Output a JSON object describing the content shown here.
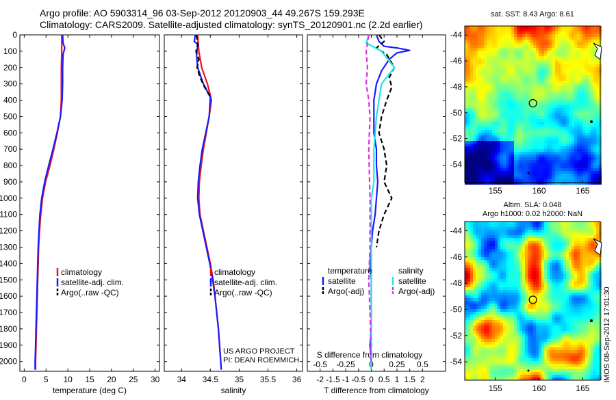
{
  "title": {
    "line1": "Argo profile: AO 5903314_96 03-Sep-2012 20120903_44 49.267S 159.293E",
    "line2": "Climatology: CARS2009. Satellite-adjusted climatology: synTS_20120901.nc (2.2d earlier)"
  },
  "colors": {
    "climatology": "#e8141b",
    "satellite": "#1a1aff",
    "argo": "#000000",
    "salinity_sat": "#1ee6e6",
    "salinity_argo": "#e030e0"
  },
  "depth_axis": {
    "ticks": [
      0,
      100,
      200,
      300,
      400,
      500,
      600,
      700,
      800,
      900,
      1000,
      1100,
      1200,
      1300,
      1400,
      1500,
      1600,
      1700,
      1800,
      1900,
      2000
    ],
    "ylim": [
      0,
      2060
    ]
  },
  "credit": {
    "line1": "US ARGO PROJECT",
    "line2": "PI: DEAN ROEMMICH"
  },
  "timestamp": "IMOS 08-Sep-2012 17:01:30",
  "chart_data": [
    {
      "id": "temperature",
      "type": "line",
      "xlabel": "temperature (deg C)",
      "xlim": [
        -1,
        31
      ],
      "xticks": [
        0,
        5,
        10,
        15,
        20,
        25,
        30
      ],
      "legend": [
        "climatology",
        "satellite-adj. clim.",
        "Argo(..raw -QC)"
      ],
      "series": [
        {
          "name": "climatology",
          "color": "#e8141b",
          "dash": false,
          "points": [
            [
              8.6,
              0
            ],
            [
              8.6,
              100
            ],
            [
              8.5,
              200
            ],
            [
              8.5,
              300
            ],
            [
              8.5,
              400
            ],
            [
              8.3,
              500
            ],
            [
              7.6,
              600
            ],
            [
              6.8,
              700
            ],
            [
              5.9,
              800
            ],
            [
              4.9,
              900
            ],
            [
              4.2,
              1000
            ],
            [
              3.8,
              1100
            ],
            [
              3.5,
              1200
            ],
            [
              3.3,
              1300
            ],
            [
              3.2,
              1400
            ],
            [
              3.1,
              1500
            ],
            [
              3.0,
              1600
            ],
            [
              2.9,
              1700
            ],
            [
              2.8,
              1800
            ],
            [
              2.7,
              1900
            ],
            [
              2.6,
              2000
            ],
            [
              2.6,
              2050
            ]
          ]
        },
        {
          "name": "satellite-adj. clim.",
          "color": "#1a1aff",
          "dash": false,
          "points": [
            [
              8.8,
              0
            ],
            [
              8.9,
              50
            ],
            [
              9.3,
              80
            ],
            [
              8.9,
              120
            ],
            [
              8.8,
              200
            ],
            [
              8.8,
              300
            ],
            [
              8.7,
              400
            ],
            [
              8.3,
              500
            ],
            [
              7.5,
              600
            ],
            [
              6.6,
              700
            ],
            [
              5.6,
              800
            ],
            [
              4.7,
              900
            ],
            [
              4.0,
              1000
            ],
            [
              3.6,
              1100
            ],
            [
              3.4,
              1200
            ],
            [
              3.2,
              1300
            ],
            [
              3.1,
              1400
            ],
            [
              3.0,
              1500
            ],
            [
              2.9,
              1600
            ],
            [
              2.8,
              1700
            ],
            [
              2.7,
              1800
            ],
            [
              2.6,
              1900
            ],
            [
              2.5,
              2000
            ],
            [
              2.5,
              2050
            ]
          ]
        }
      ]
    },
    {
      "id": "salinity",
      "type": "line",
      "xlabel": "salinity",
      "xlim": [
        33.7,
        36.1
      ],
      "xticks": [
        34,
        34.5,
        35,
        35.5,
        36
      ],
      "legend": [
        "climatology",
        "satellite-adj. clim.",
        "Argo(..raw -QC)"
      ],
      "series": [
        {
          "name": "climatology",
          "color": "#e8141b",
          "dash": false,
          "points": [
            [
              34.28,
              0
            ],
            [
              34.3,
              100
            ],
            [
              34.35,
              200
            ],
            [
              34.45,
              300
            ],
            [
              34.52,
              400
            ],
            [
              34.48,
              500
            ],
            [
              34.43,
              600
            ],
            [
              34.38,
              700
            ],
            [
              34.34,
              800
            ],
            [
              34.31,
              900
            ],
            [
              34.3,
              1000
            ],
            [
              34.32,
              1100
            ],
            [
              34.38,
              1200
            ],
            [
              34.44,
              1300
            ],
            [
              34.5,
              1400
            ],
            [
              34.55,
              1500
            ],
            [
              34.58,
              1600
            ],
            [
              34.61,
              1700
            ],
            [
              34.64,
              1800
            ],
            [
              34.66,
              1900
            ],
            [
              34.68,
              2000
            ],
            [
              34.69,
              2050
            ]
          ]
        },
        {
          "name": "satellite-adj. clim.",
          "color": "#1a1aff",
          "dash": false,
          "points": [
            [
              34.24,
              0
            ],
            [
              34.22,
              40
            ],
            [
              34.29,
              60
            ],
            [
              34.27,
              90
            ],
            [
              34.26,
              120
            ],
            [
              34.28,
              200
            ],
            [
              34.38,
              300
            ],
            [
              34.5,
              380
            ],
            [
              34.48,
              500
            ],
            [
              34.42,
              600
            ],
            [
              34.36,
              700
            ],
            [
              34.32,
              800
            ],
            [
              34.29,
              900
            ],
            [
              34.28,
              1000
            ],
            [
              34.31,
              1100
            ],
            [
              34.37,
              1200
            ],
            [
              34.43,
              1300
            ],
            [
              34.49,
              1400
            ],
            [
              34.54,
              1500
            ],
            [
              34.58,
              1600
            ],
            [
              34.61,
              1700
            ],
            [
              34.64,
              1800
            ],
            [
              34.66,
              1900
            ],
            [
              34.68,
              2000
            ],
            [
              34.69,
              2050
            ]
          ]
        },
        {
          "name": "Argo(..raw -QC)",
          "color": "#000000",
          "dash": true,
          "points": [
            [
              34.26,
              0
            ],
            [
              34.28,
              60
            ],
            [
              34.25,
              100
            ],
            [
              34.3,
              150
            ],
            [
              34.27,
              200
            ],
            [
              34.32,
              260
            ],
            [
              34.4,
              320
            ],
            [
              34.5,
              380
            ]
          ]
        }
      ]
    },
    {
      "id": "difference",
      "type": "line",
      "xlabel": "T difference from climatology",
      "xlabel_top": "S difference from climatology",
      "xlim": [
        -2.5,
        2.9
      ],
      "xticks": [
        -2,
        -1.5,
        -1,
        -0.5,
        0,
        0.5,
        1,
        1.5,
        2
      ],
      "xticklabels": [
        "-2",
        "-1.5",
        "-1",
        "-0.5",
        "0",
        "0.5",
        "1",
        "1.5",
        "2"
      ],
      "xticks_top": [
        -0.5,
        -0.25,
        0,
        0.25,
        0.5
      ],
      "xticklabels_top": [
        "-0.5",
        "-0.25",
        "0",
        "0.25",
        "0.5"
      ],
      "legend_temperature": {
        "title": "temperature",
        "items": [
          "satellite",
          "Argo(-adj)"
        ]
      },
      "legend_salinity": {
        "title": "salinity",
        "items": [
          "satellite",
          "Argo(-adj)"
        ]
      },
      "series": [
        {
          "name": "satellite",
          "color": "#1a1aff",
          "dash": false,
          "points": [
            [
              0.2,
              0
            ],
            [
              0.3,
              40
            ],
            [
              0.5,
              70
            ],
            [
              1.0,
              80
            ],
            [
              1.5,
              95
            ],
            [
              1.0,
              110
            ],
            [
              0.7,
              150
            ],
            [
              0.4,
              220
            ],
            [
              0.2,
              300
            ],
            [
              0.1,
              400
            ],
            [
              0.1,
              500
            ],
            [
              0.1,
              600
            ],
            [
              0.2,
              700
            ],
            [
              0.2,
              800
            ],
            [
              0.25,
              900
            ],
            [
              0.2,
              1000
            ],
            [
              0.15,
              1100
            ],
            [
              0.05,
              1200
            ],
            [
              0.0,
              1300
            ],
            [
              -0.05,
              1400
            ],
            [
              0.0,
              1500
            ],
            [
              0.0,
              1600
            ],
            [
              0.0,
              1700
            ],
            [
              0.0,
              1800
            ],
            [
              -0.05,
              1900
            ],
            [
              0.0,
              2000
            ],
            [
              0.0,
              2050
            ]
          ]
        },
        {
          "name": "Argo(-adj)",
          "color": "#000000",
          "dash": true,
          "points": [
            [
              0.3,
              0
            ],
            [
              0.5,
              40
            ],
            [
              0.2,
              80
            ],
            [
              0.6,
              120
            ],
            [
              0.9,
              200
            ],
            [
              0.7,
              260
            ],
            [
              0.8,
              320
            ],
            [
              0.6,
              400
            ],
            [
              0.4,
              500
            ],
            [
              0.3,
              600
            ],
            [
              0.5,
              700
            ],
            [
              0.6,
              800
            ],
            [
              0.5,
              900
            ],
            [
              0.8,
              1000
            ],
            [
              0.5,
              1100
            ],
            [
              0.3,
              1200
            ],
            [
              0.2,
              1300
            ]
          ]
        },
        {
          "name": "salinity satellite",
          "color": "#1ee6e6",
          "dash": false,
          "points": [
            [
              -0.1,
              0
            ],
            [
              -0.2,
              50
            ],
            [
              0.4,
              100
            ],
            [
              0.9,
              200
            ],
            [
              0.4,
              300
            ],
            [
              0.3,
              400
            ],
            [
              0.2,
              500
            ],
            [
              0.1,
              700
            ],
            [
              0.1,
              900
            ],
            [
              0.0,
              1000
            ],
            [
              0.0,
              1200
            ],
            [
              0.0,
              1500
            ],
            [
              0.0,
              1700
            ],
            [
              0.0,
              2000
            ],
            [
              0.0,
              2050
            ]
          ]
        },
        {
          "name": "salinity Argo(-adj)",
          "color": "#e030e0",
          "dash": true,
          "points": [
            [
              -0.1,
              0
            ],
            [
              -0.2,
              100
            ],
            [
              -0.15,
              200
            ],
            [
              -0.2,
              300
            ],
            [
              -0.1,
              400
            ],
            [
              -0.05,
              500
            ],
            [
              -0.1,
              700
            ],
            [
              -0.05,
              1000
            ],
            [
              -0.05,
              1300
            ],
            [
              -0.1,
              1500
            ],
            [
              -0.05,
              1700
            ],
            [
              0.0,
              2000
            ]
          ]
        }
      ]
    },
    {
      "id": "sst_map",
      "type": "heatmap",
      "title": "sat. SST: 8.43 Argo: 8.61",
      "xlim": [
        151.5,
        167
      ],
      "ylim": [
        -55.4,
        -43.3
      ],
      "xticks": [
        155,
        160,
        165
      ],
      "yticks": [
        -44,
        -46,
        -48,
        -50,
        -52,
        -54
      ],
      "profile_marker": [
        159.3,
        -49.27
      ]
    },
    {
      "id": "sla_map",
      "type": "heatmap",
      "title": "Altim. SLA: 0.048",
      "subtitle": "Argo h1000: 0.02 h2000: NaN",
      "xlim": [
        151.5,
        167
      ],
      "ylim": [
        -55.4,
        -43.3
      ],
      "xticks": [
        155,
        160,
        165
      ],
      "yticks": [
        -44,
        -46,
        -48,
        -50,
        -52,
        -54
      ],
      "profile_marker": [
        159.3,
        -49.27
      ]
    }
  ]
}
